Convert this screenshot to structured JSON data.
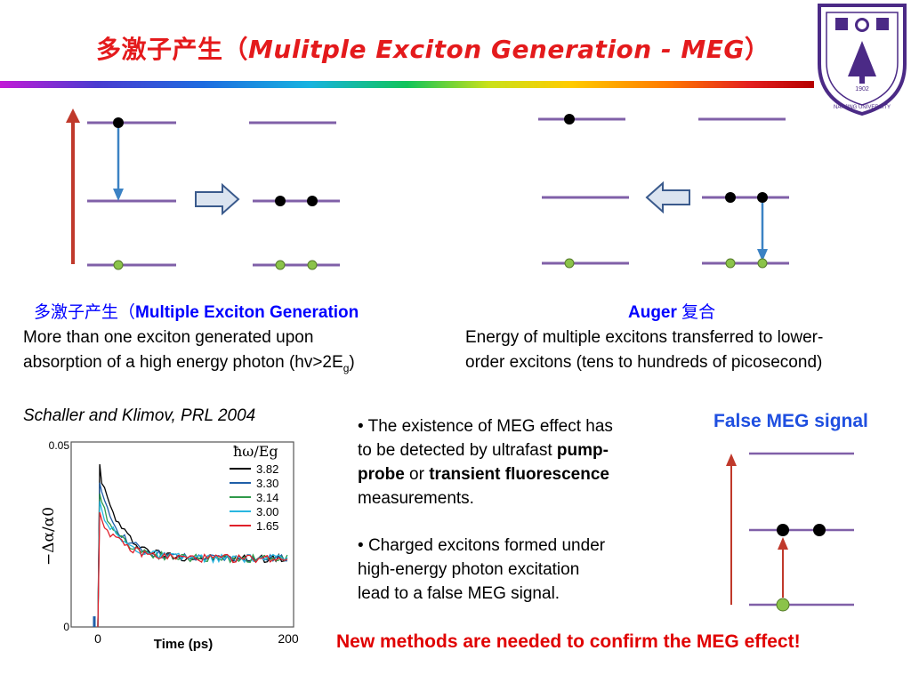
{
  "header": {
    "title_cn": "多激子产生（",
    "title_en": "Mulitple Exciton Generation - MEG",
    "title_close": "）",
    "logo_text": "NANJING UNIVERSITY",
    "logo_year": "1902"
  },
  "left_caption": {
    "heading_cn": "多激子产生（",
    "heading_en": "Multiple Exciton Generation",
    "line1": "More than one exciton generated upon",
    "line2_prefix": "absorption of a high energy photon (hv>2E",
    "line2_sub": "g",
    "line2_suffix": ")"
  },
  "right_caption": {
    "heading_en": "Auger",
    "heading_cn": " 复合",
    "line1": "Energy of multiple excitons transferred to lower-",
    "line2": "order excitons (tens to hundreds of picosecond)"
  },
  "reference": "Schaller and Klimov, PRL 2004",
  "bullets": {
    "b1_pre": "The existence of MEG effect has",
    "b1_line2_pre": "to be detected by ultrafast ",
    "b1_bold1": "pump-",
    "b1_bold1b": "probe",
    "b1_mid": " or ",
    "b1_bold2": "transient fluorescence",
    "b1_end": "measurements.",
    "b2_line1": "Charged excitons formed under",
    "b2_line2": "high-energy photon excitation",
    "b2_line3": "lead to a false MEG signal."
  },
  "false_meg_title": "False MEG signal",
  "conclusion": "New methods are needed to confirm the MEG effect!",
  "colors": {
    "title_red": "#e41a1c",
    "level_purple": "#8060a8",
    "arrow_red": "#c0392b",
    "arrow_blue": "#3b82c4",
    "dot_green": "#8bc34a"
  },
  "chart_data": {
    "type": "line",
    "ylabel": "−Δα/α0",
    "xlabel": "Time (ps)",
    "legend_title": "ħω/Eg",
    "xlim": [
      0,
      200
    ],
    "ylim": [
      0,
      0.05
    ],
    "xticks": [
      "0",
      "200"
    ],
    "yticks": [
      "0",
      "0.05"
    ],
    "series": [
      {
        "name": "3.82",
        "color": "#000000",
        "peak": 0.044
      },
      {
        "name": "3.30",
        "color": "#1f5fa8",
        "peak": 0.039
      },
      {
        "name": "3.14",
        "color": "#2f9a4a",
        "peak": 0.036
      },
      {
        "name": "3.00",
        "color": "#29b6e0",
        "peak": 0.034
      },
      {
        "name": "1.65",
        "color": "#e0202a",
        "peak": 0.031
      }
    ],
    "plateau": 0.0185
  }
}
